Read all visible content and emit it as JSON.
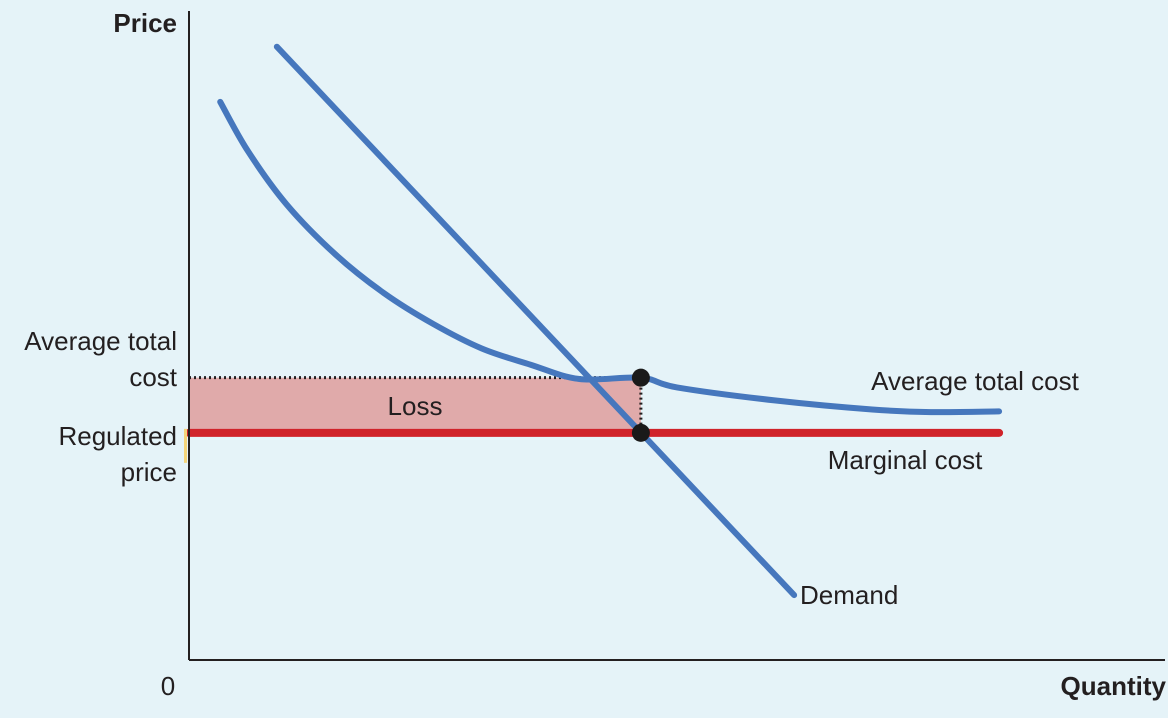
{
  "chart_data": {
    "type": "line",
    "title": "",
    "xlabel": "Quantity",
    "ylabel": "Price",
    "origin_label": "0",
    "xlim": [
      0,
      100
    ],
    "ylim": [
      0,
      100
    ],
    "grid": false,
    "legend": "none",
    "y_tick_labels": {
      "atc": [
        "Average total",
        "cost"
      ],
      "regulated": [
        "Regulated",
        "price"
      ]
    },
    "levels": {
      "atc_price": 43.5,
      "regulated_price": 35
    },
    "series": [
      {
        "name": "Demand",
        "color": "#4677bd",
        "points": [
          [
            9,
            94.5
          ],
          [
            62,
            10
          ]
        ]
      },
      {
        "name": "Average total cost",
        "color": "#4677bd",
        "points": [
          [
            3.2,
            86
          ],
          [
            6,
            78.5
          ],
          [
            10,
            70.2
          ],
          [
            15,
            62.5
          ],
          [
            20,
            56.5
          ],
          [
            25,
            51.8
          ],
          [
            30,
            48
          ],
          [
            35,
            45.5
          ],
          [
            40,
            43.3
          ],
          [
            46.3,
            43.5
          ],
          [
            50,
            42
          ],
          [
            60,
            40
          ],
          [
            70,
            38.6
          ],
          [
            76,
            38.2
          ],
          [
            83,
            38.3
          ]
        ]
      },
      {
        "name": "Marginal cost",
        "color": "#d0232a",
        "points": [
          [
            0,
            35
          ],
          [
            83,
            35
          ]
        ]
      }
    ],
    "loss_area": {
      "label": "Loss",
      "x": [
        0,
        46.3
      ],
      "y": [
        35,
        43.5
      ],
      "color": "#e0aaaa"
    },
    "points": [
      {
        "name": "atc-at-regulated-quantity",
        "x": 46.3,
        "y": 43.5
      },
      {
        "name": "demand-mc-intersection",
        "x": 46.3,
        "y": 35
      }
    ],
    "annotations": {
      "loss": "Loss",
      "atc_curve": "Average total cost",
      "mc_curve": "Marginal cost",
      "demand_curve": "Demand"
    }
  }
}
